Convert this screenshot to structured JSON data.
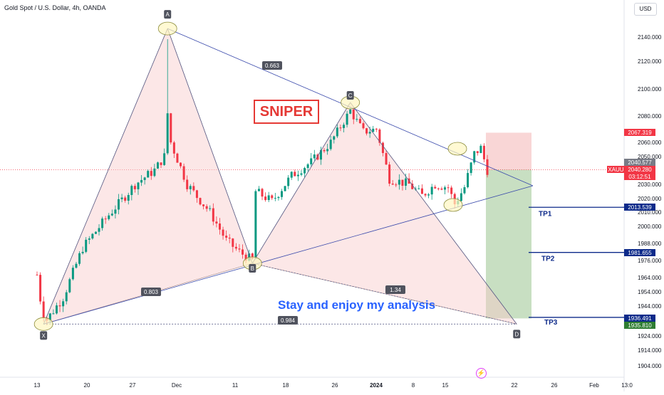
{
  "header": {
    "title": "Gold Spot / U.S. Dollar, 4h, OANDA",
    "currency_button": "USD"
  },
  "annotations": {
    "sniper_label": "SNIPER",
    "caption": "Stay and enjoy my analysis"
  },
  "colors": {
    "bull": "#089981",
    "bear": "#f23645",
    "pattern_fill": "#f8c9c9",
    "pattern_line": "#5b5f8a",
    "target_line": "#0d2a8a",
    "stop_zone": "#f9d6d6",
    "profit_zone": "#c8dfc2",
    "marker_fill": "#fff7c0"
  },
  "chart_data": {
    "type": "candlestick",
    "symbol": "XAUUSD",
    "timeframe": "4h",
    "x_tick_labels": [
      "13",
      "20",
      "27",
      "Dec",
      "11",
      "18",
      "26",
      "2024",
      "8",
      "15",
      "22",
      "26",
      "Feb",
      "13:0"
    ],
    "y_tick_labels": [
      2140.0,
      2120.0,
      2100.0,
      2080.0,
      2060.0,
      2050.0,
      2030.0,
      2020.0,
      2010.0,
      2000.0,
      1988.0,
      1976.0,
      1964.0,
      1954.0,
      1944.0,
      1924.0,
      1914.0,
      1904.0
    ],
    "price_labels": [
      {
        "text": "2067.319",
        "value": 2067.319,
        "color": "#f23645"
      },
      {
        "text": "2040.577",
        "value": 2040.577,
        "color": "#787b86"
      },
      {
        "text": "XAUUSD",
        "value": 2040.28,
        "color": "#f23645"
      },
      {
        "text": "2040.280",
        "value": 2040.28,
        "color": "#f23645"
      },
      {
        "text": "03:12:51",
        "value": 2040.28,
        "color": "#f23645"
      },
      {
        "text": "2013.539",
        "value": 2013.539,
        "color": "#0d2a8a"
      },
      {
        "text": "1981.655",
        "value": 1981.655,
        "color": "#0d2a8a"
      },
      {
        "text": "1936.491",
        "value": 1936.491,
        "color": "#0d2a8a"
      },
      {
        "text": "1935.810",
        "value": 1935.81,
        "color": "#2e7d32"
      }
    ],
    "pattern_points": [
      {
        "label": "X",
        "date_index": 2,
        "price": 1932
      },
      {
        "label": "A",
        "date_index": 40,
        "price": 2147
      },
      {
        "label": "B",
        "date_index": 66,
        "price": 1974
      },
      {
        "label": "C",
        "date_index": 96,
        "price": 2090
      },
      {
        "label": "D",
        "date_index": 147,
        "price": 1932
      }
    ],
    "ratios": [
      {
        "text": "0.663",
        "between": "A-C"
      },
      {
        "text": "0.803",
        "between": "X-B"
      },
      {
        "text": "1.34",
        "between": "B-D"
      },
      {
        "text": "0.984",
        "between": "X-D"
      }
    ],
    "targets": [
      {
        "label": "TP1",
        "price": 2013.539
      },
      {
        "label": "TP2",
        "price": 1981.655
      },
      {
        "label": "TP3",
        "price": 1936.491
      }
    ],
    "position": {
      "entry": 2040.28,
      "stop": 2067.319,
      "target": 1935.81
    },
    "candles": []
  }
}
